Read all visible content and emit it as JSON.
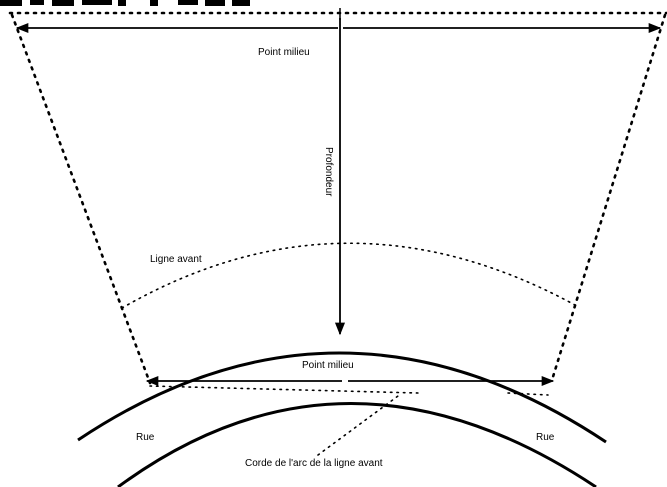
{
  "labels": {
    "point_milieu_top": "Point milieu",
    "profondeur": "Profondeur",
    "ligne_avant": "Ligne avant",
    "point_milieu_bottom": "Point milieu",
    "rue_left": "Rue",
    "rue_right": "Rue",
    "corde": "Corde de l'arc de la ligne avant"
  }
}
